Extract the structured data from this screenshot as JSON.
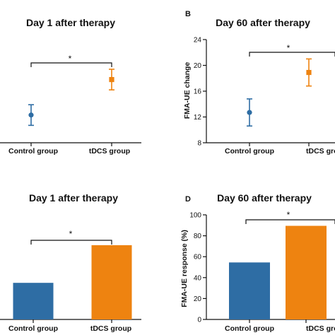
{
  "colors": {
    "control": "#2e6da4",
    "tdcs": "#ee8310",
    "axis": "#111111"
  },
  "chart_data": [
    {
      "panel": "",
      "type": "scatter",
      "title": "Day 1 after therapy",
      "categories": [
        "Control group",
        "tDCS group"
      ],
      "values": [
        12.3,
        17.8
      ],
      "errors": [
        1.6,
        1.6
      ],
      "ylabel": "",
      "ylim": [
        8,
        24
      ],
      "yticks": [],
      "significance": "*",
      "show_y_axis": false,
      "show_left_tick_labels": false
    },
    {
      "panel": "B",
      "type": "scatter",
      "title": "Day 60 after therapy",
      "categories": [
        "Control group",
        "tDCS group"
      ],
      "values": [
        12.7,
        18.9
      ],
      "errors": [
        2.1,
        2.1
      ],
      "ylabel": "FMA-UE change",
      "ylim": [
        8,
        24
      ],
      "yticks": [
        "8",
        "12",
        "16",
        "20",
        "24"
      ],
      "significance": "*",
      "show_y_axis": true
    },
    {
      "panel": "",
      "type": "bar",
      "title": "Day 1 after therapy",
      "categories": [
        "Control group",
        "tDCS group"
      ],
      "values": [
        35,
        71
      ],
      "ylabel": "",
      "ylim": [
        0,
        100
      ],
      "yticks": [],
      "significance": "*",
      "show_y_axis": false
    },
    {
      "panel": "D",
      "type": "bar",
      "title": "Day 60 after therapy",
      "categories": [
        "Control group",
        "tDCS group"
      ],
      "values": [
        54.5,
        89.5
      ],
      "ylabel": "FMA-UE response (%)",
      "ylim": [
        0,
        100
      ],
      "yticks": [
        "0",
        "20",
        "40",
        "60",
        "80",
        "100"
      ],
      "significance": "*",
      "show_y_axis": true
    }
  ]
}
